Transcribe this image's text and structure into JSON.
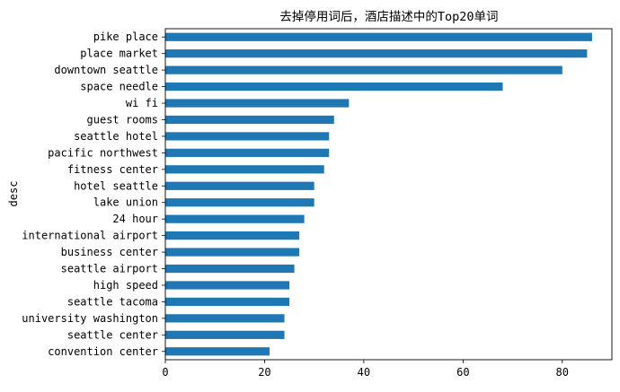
{
  "chart_data": {
    "type": "bar",
    "orientation": "horizontal",
    "title": "去掉停用词后，酒店描述中的Top20单词",
    "xlabel": "",
    "ylabel": "desc",
    "xlim": [
      0,
      90
    ],
    "xticks": [
      0,
      20,
      40,
      60,
      80
    ],
    "grid": false,
    "legend": "none",
    "bar_color": "#1f77b4",
    "categories": [
      "pike place",
      "place market",
      "downtown seattle",
      "space needle",
      "wi fi",
      "guest rooms",
      "seattle hotel",
      "pacific northwest",
      "fitness center",
      "hotel seattle",
      "lake union",
      "24 hour",
      "international airport",
      "business center",
      "seattle airport",
      "high speed",
      "seattle tacoma",
      "university washington",
      "seattle center",
      "convention center"
    ],
    "values": [
      86,
      85,
      80,
      68,
      37,
      34,
      33,
      33,
      32,
      30,
      30,
      28,
      27,
      27,
      26,
      25,
      25,
      24,
      24,
      21
    ]
  }
}
